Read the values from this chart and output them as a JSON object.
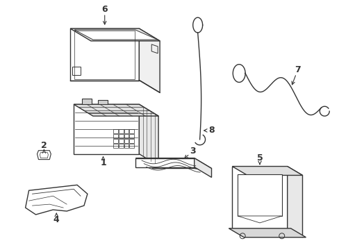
{
  "background_color": "#ffffff",
  "line_color": "#333333",
  "line_width": 1.0,
  "fig_width": 4.89,
  "fig_height": 3.6,
  "dpi": 100,
  "label_fontsize": 9
}
